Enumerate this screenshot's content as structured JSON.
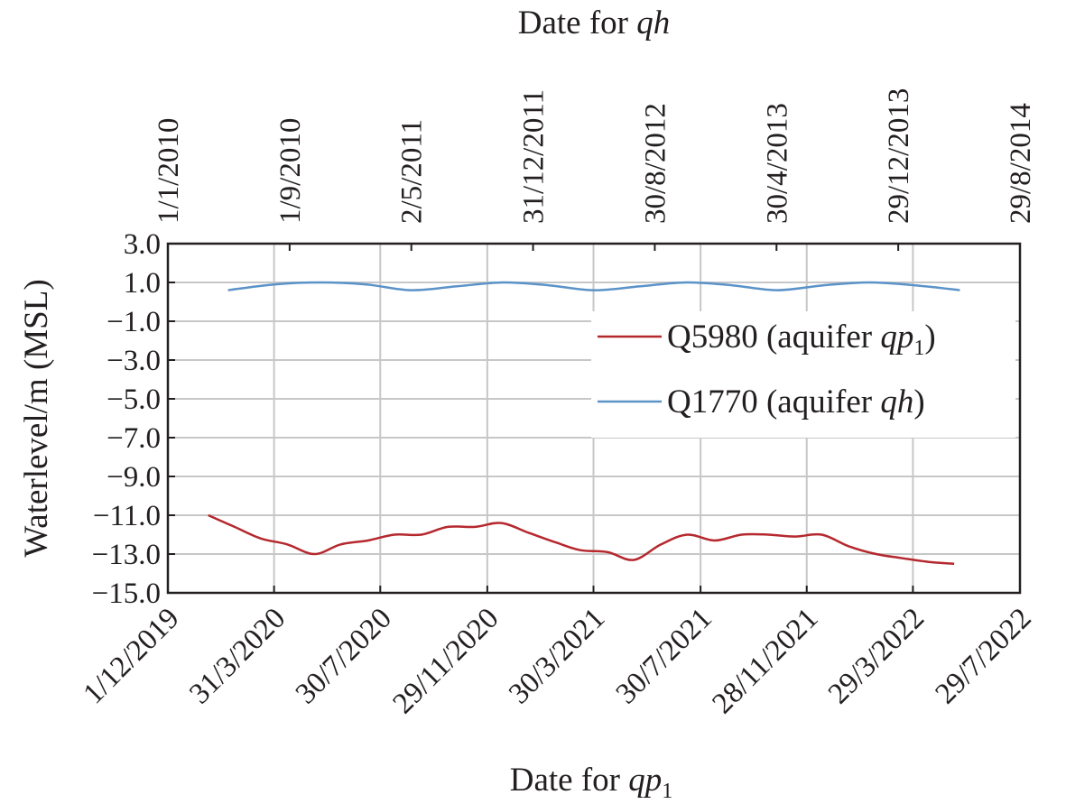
{
  "chart_data": {
    "type": "line",
    "top_axis_title": {
      "text": "Date for ",
      "italic": "qh",
      "subscript": ""
    },
    "bottom_axis_title": {
      "text": "Date for ",
      "italic": "qp",
      "subscript": "1"
    },
    "ylabel": "Waterlevel/m (MSL)",
    "ylim": [
      -15.0,
      3.0
    ],
    "yticks": [
      "3.0",
      "1.0",
      "−1.0",
      "−3.0",
      "−5.0",
      "−7.0",
      "−9.0",
      "−11.0",
      "−13.0",
      "−15.0"
    ],
    "xticks_bottom": [
      "1/12/2019",
      "31/3/2020",
      "30/7/2020",
      "29/11/2020",
      "30/3/2021",
      "30/7/2021",
      "28/11/2021",
      "29/3/2022",
      "29/7/2022"
    ],
    "xticks_top": [
      "1/1/2010",
      "1/9/2010",
      "2/5/2011",
      "31/12/2011",
      "30/8/2012",
      "30/4/2013",
      "29/12/2013",
      "29/8/2014"
    ],
    "grid": true,
    "legend_position": "right",
    "series": [
      {
        "name": "Q5980 (aquifer ",
        "name_italic": "qp",
        "name_subscript": "1",
        "name_suffix": ")",
        "axis": "bottom",
        "color": "#b5282e",
        "x": [
          "2020-01-16",
          "2020-02-15",
          "2020-03-16",
          "2020-04-15",
          "2020-05-16",
          "2020-06-15",
          "2020-07-16",
          "2020-08-15",
          "2020-09-15",
          "2020-10-15",
          "2020-11-15",
          "2020-12-15",
          "2021-01-15",
          "2021-02-15",
          "2021-03-15",
          "2021-04-15",
          "2021-05-15",
          "2021-06-15",
          "2021-07-15",
          "2021-08-15",
          "2021-09-15",
          "2021-10-15",
          "2021-11-15",
          "2021-12-15",
          "2022-01-15",
          "2022-02-15",
          "2022-03-15",
          "2022-04-15",
          "2022-05-15"
        ],
        "y": [
          -11.0,
          -11.6,
          -12.2,
          -12.5,
          -13.0,
          -12.5,
          -12.3,
          -12.0,
          -12.0,
          -11.6,
          -11.6,
          -11.4,
          -11.9,
          -12.4,
          -12.8,
          -12.9,
          -13.3,
          -12.5,
          -12.0,
          -12.3,
          -12.0,
          -12.0,
          -12.1,
          -12.0,
          -12.6,
          -13.0,
          -13.2,
          -13.4,
          -13.5
        ]
      },
      {
        "name": "Q1770 (aquifer ",
        "name_italic": "qh",
        "name_subscript": "",
        "name_suffix": ")",
        "axis": "top",
        "color": "#5b93c8",
        "x": [
          "2010-05-01",
          "2010-08-01",
          "2010-11-01",
          "2011-02-01",
          "2011-05-01",
          "2011-08-01",
          "2011-11-01",
          "2012-02-01",
          "2012-05-01",
          "2012-08-01",
          "2012-11-01",
          "2013-02-01",
          "2013-05-01",
          "2013-08-01",
          "2013-11-01",
          "2014-02-01",
          "2014-05-01"
        ],
        "y": [
          0.6,
          0.9,
          1.0,
          0.9,
          0.6,
          0.8,
          1.0,
          0.85,
          0.6,
          0.8,
          1.0,
          0.85,
          0.6,
          0.85,
          1.0,
          0.85,
          0.6
        ]
      }
    ]
  }
}
